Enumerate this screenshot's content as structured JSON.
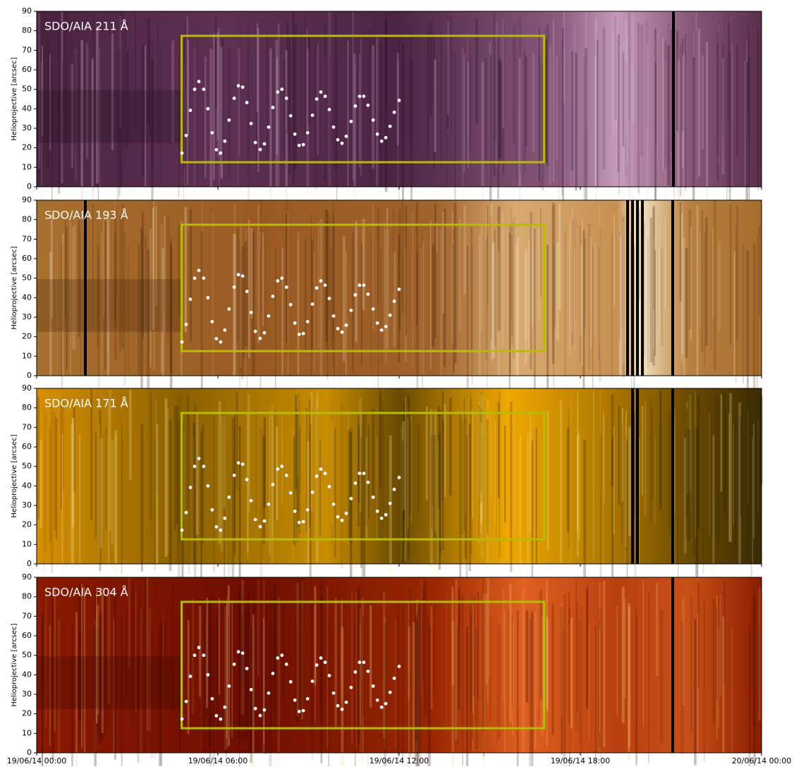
{
  "chart_data": [
    {
      "type": "scatter",
      "title": "SDO/AIA 211 Å",
      "ylabel": "Helioprojective [arcsec]",
      "xlim": [
        0,
        24
      ],
      "ylim": [
        0,
        90
      ],
      "yticks": [
        0,
        10,
        20,
        30,
        40,
        50,
        60,
        70,
        80,
        90
      ],
      "region": {
        "x": [
          4.8,
          16.8
        ],
        "y": [
          12.6,
          77.4
        ],
        "color": "#b8bd00"
      },
      "color": "#ffffff",
      "x": [
        4.81,
        4.95,
        5.09,
        5.23,
        5.37,
        5.53,
        5.67,
        5.81,
        5.95,
        6.09,
        6.23,
        6.37,
        6.54,
        6.68,
        6.82,
        6.96,
        7.1,
        7.24,
        7.4,
        7.54,
        7.68,
        7.82,
        7.98,
        8.12,
        8.27,
        8.41,
        8.55,
        8.69,
        8.83,
        8.97,
        9.13,
        9.27,
        9.41,
        9.55,
        9.69,
        9.83,
        9.97,
        10.11,
        10.25,
        10.41,
        10.55,
        10.69,
        10.83,
        10.97,
        11.14,
        11.28,
        11.42,
        11.56,
        11.7,
        11.84,
        12.0
      ],
      "values": [
        17.3,
        26.3,
        39.2,
        50,
        54,
        50,
        40,
        27.7,
        19,
        17.3,
        23.4,
        34.2,
        45.4,
        51.8,
        51.1,
        43.2,
        32.4,
        22.7,
        19.1,
        22,
        30.6,
        40.7,
        48.6,
        50,
        45.4,
        36.4,
        27,
        21.2,
        21.6,
        27.7,
        36.7,
        45,
        48.6,
        46.4,
        39.6,
        30.6,
        24.1,
        22.3,
        25.9,
        33.5,
        41.4,
        46.4,
        46.4,
        41.8,
        34.2,
        27,
        23.4,
        25.2,
        31,
        38.2,
        44.3
      ]
    },
    {
      "type": "scatter",
      "title": "SDO/AIA 193 Å",
      "ylabel": "Helioprojective [arcsec]",
      "xlim": [
        0,
        24
      ],
      "ylim": [
        0,
        90
      ],
      "yticks": [
        0,
        10,
        20,
        30,
        40,
        50,
        60,
        70,
        80,
        90
      ],
      "region": {
        "x": [
          4.8,
          16.8
        ],
        "y": [
          12.6,
          77.4
        ],
        "color": "#b8bd00"
      },
      "color": "#ffffff",
      "x": [
        4.81,
        4.95,
        5.09,
        5.23,
        5.37,
        5.53,
        5.67,
        5.81,
        5.95,
        6.09,
        6.23,
        6.37,
        6.54,
        6.68,
        6.82,
        6.96,
        7.1,
        7.24,
        7.4,
        7.54,
        7.68,
        7.82,
        7.98,
        8.12,
        8.27,
        8.41,
        8.55,
        8.69,
        8.83,
        8.97,
        9.13,
        9.27,
        9.41,
        9.55,
        9.69,
        9.83,
        9.97,
        10.11,
        10.25,
        10.41,
        10.55,
        10.69,
        10.83,
        10.97,
        11.14,
        11.28,
        11.42,
        11.56,
        11.7,
        11.84,
        12.0
      ],
      "values": [
        17.3,
        26.3,
        39.2,
        50,
        54,
        50,
        40,
        27.7,
        19,
        17.3,
        23.4,
        34.2,
        45.4,
        51.8,
        51.1,
        43.2,
        32.4,
        22.7,
        19.1,
        22,
        30.6,
        40.7,
        48.6,
        50,
        45.4,
        36.4,
        27,
        21.2,
        21.6,
        27.7,
        36.7,
        45,
        48.6,
        46.4,
        39.6,
        30.6,
        24.1,
        22.3,
        25.9,
        33.5,
        41.4,
        46.4,
        46.4,
        41.8,
        34.2,
        27,
        23.4,
        25.2,
        31,
        38.2,
        44.3
      ]
    },
    {
      "type": "scatter",
      "title": "SDO/AIA 171 Å",
      "ylabel": "Helioprojective [arcsec]",
      "xlim": [
        0,
        24
      ],
      "ylim": [
        0,
        90
      ],
      "yticks": [
        0,
        10,
        20,
        30,
        40,
        50,
        60,
        70,
        80,
        90
      ],
      "region": {
        "x": [
          4.8,
          16.8
        ],
        "y": [
          12.6,
          77.4
        ],
        "color": "#b8bd00"
      },
      "color": "#ffffff",
      "x": [
        4.81,
        4.95,
        5.09,
        5.23,
        5.37,
        5.53,
        5.67,
        5.81,
        5.95,
        6.09,
        6.23,
        6.37,
        6.54,
        6.68,
        6.82,
        6.96,
        7.1,
        7.24,
        7.4,
        7.54,
        7.68,
        7.82,
        7.98,
        8.12,
        8.27,
        8.41,
        8.55,
        8.69,
        8.83,
        8.97,
        9.13,
        9.27,
        9.41,
        9.55,
        9.69,
        9.83,
        9.97,
        10.11,
        10.25,
        10.41,
        10.55,
        10.69,
        10.83,
        10.97,
        11.14,
        11.28,
        11.42,
        11.56,
        11.7,
        11.84,
        12.0
      ],
      "values": [
        17.3,
        26.3,
        39.2,
        50,
        54,
        50,
        40,
        27.7,
        19,
        17.3,
        23.4,
        34.2,
        45.4,
        51.8,
        51.1,
        43.2,
        32.4,
        22.7,
        19.1,
        22,
        30.6,
        40.7,
        48.6,
        50,
        45.4,
        36.4,
        27,
        21.2,
        21.6,
        27.7,
        36.7,
        45,
        48.6,
        46.4,
        39.6,
        30.6,
        24.1,
        22.3,
        25.9,
        33.5,
        41.4,
        46.4,
        46.4,
        41.8,
        34.2,
        27,
        23.4,
        25.2,
        31,
        38.2,
        44.3
      ]
    },
    {
      "type": "scatter",
      "title": "SDO/AIA 304 Å",
      "ylabel": "Helioprojective [arcsec]",
      "xlim": [
        0,
        24
      ],
      "ylim": [
        0,
        90
      ],
      "yticks": [
        0,
        10,
        20,
        30,
        40,
        50,
        60,
        70,
        80,
        90
      ],
      "xticks": [
        {
          "value": 0,
          "label": "19/06/14 00:00"
        },
        {
          "value": 6,
          "label": "19/06/14 06:00"
        },
        {
          "value": 12,
          "label": "19/06/14 12:00"
        },
        {
          "value": 18,
          "label": "19/06/14 18:00"
        },
        {
          "value": 24,
          "label": "20/06/14 00:00"
        }
      ],
      "region": {
        "x": [
          4.8,
          16.8
        ],
        "y": [
          12.6,
          77.4
        ],
        "color": "#b8bd00"
      },
      "color": "#ffffff",
      "x": [
        4.81,
        4.95,
        5.09,
        5.23,
        5.37,
        5.53,
        5.67,
        5.81,
        5.95,
        6.09,
        6.23,
        6.37,
        6.54,
        6.68,
        6.82,
        6.96,
        7.1,
        7.24,
        7.4,
        7.54,
        7.68,
        7.82,
        7.98,
        8.12,
        8.27,
        8.41,
        8.55,
        8.69,
        8.83,
        8.97,
        9.13,
        9.27,
        9.41,
        9.55,
        9.69,
        9.83,
        9.97,
        10.11,
        10.25,
        10.41,
        10.55,
        10.69,
        10.83,
        10.97,
        11.14,
        11.28,
        11.42,
        11.56,
        11.7,
        11.84,
        12.0
      ],
      "values": [
        17.3,
        26.3,
        39.2,
        50,
        54,
        50,
        40,
        27.7,
        19,
        17.3,
        23.4,
        34.2,
        45.4,
        51.8,
        51.1,
        43.2,
        32.4,
        22.7,
        19.1,
        22,
        30.6,
        40.7,
        48.6,
        50,
        45.4,
        36.4,
        27,
        21.2,
        21.6,
        27.7,
        36.7,
        45,
        48.6,
        46.4,
        39.6,
        30.6,
        24.1,
        22.3,
        25.9,
        33.5,
        41.4,
        46.4,
        46.4,
        41.8,
        34.2,
        27,
        23.4,
        25.2,
        31,
        38.2,
        44.3
      ]
    }
  ]
}
